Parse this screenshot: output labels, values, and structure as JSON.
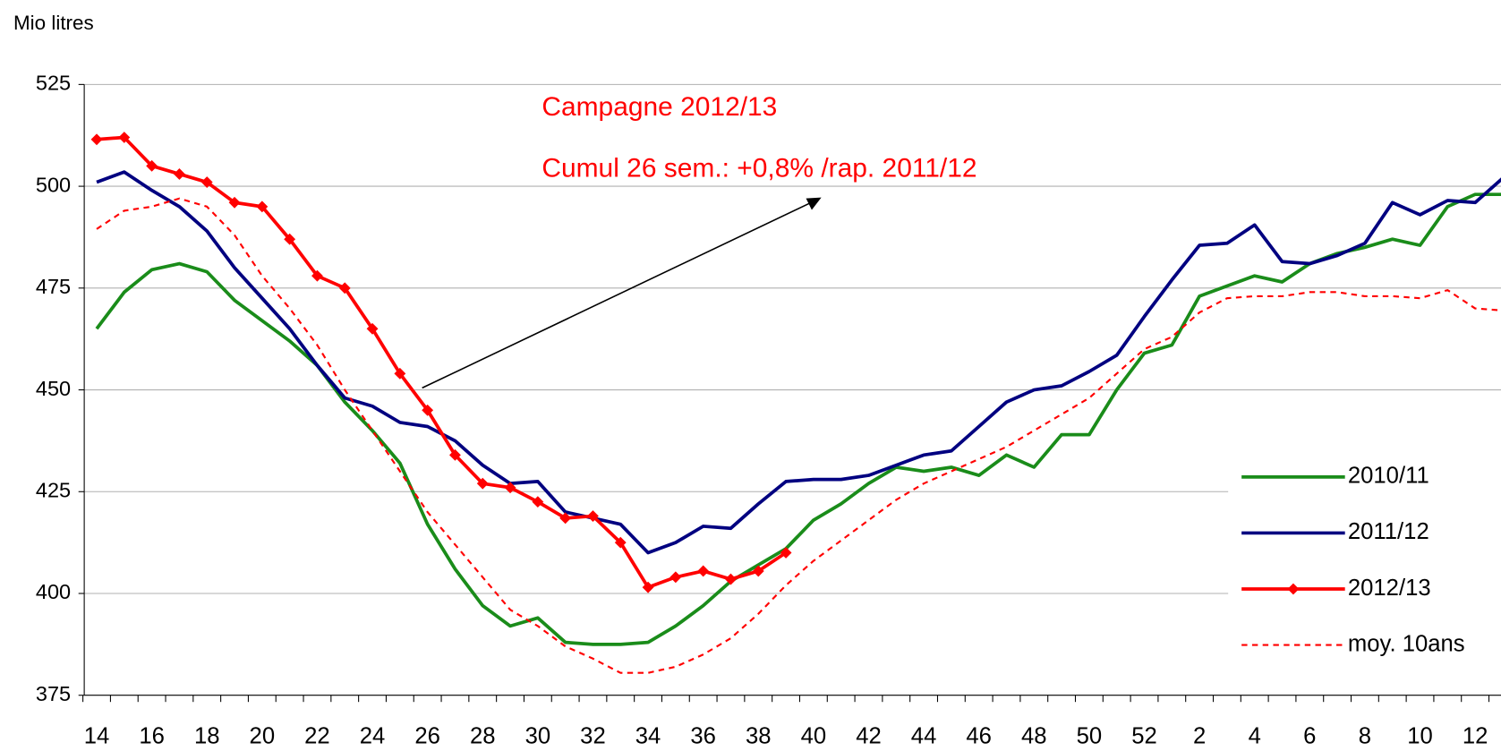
{
  "chart_data": {
    "type": "line",
    "y_label": "Mio litres",
    "annotations": [
      "Campagne 2012/13",
      "Cumul 26 sem.: +0,8% /rap. 2011/12"
    ],
    "categories": [
      14,
      null,
      16,
      null,
      18,
      null,
      20,
      null,
      22,
      null,
      24,
      null,
      26,
      null,
      28,
      null,
      30,
      null,
      32,
      null,
      34,
      null,
      36,
      null,
      38,
      null,
      40,
      null,
      42,
      null,
      44,
      null,
      46,
      null,
      48,
      null,
      50,
      null,
      52,
      null,
      2,
      null,
      4,
      null,
      6,
      null,
      8,
      null,
      10,
      null,
      12,
      null
    ],
    "ylim": [
      375,
      525
    ],
    "yticks": [
      375,
      400,
      425,
      450,
      475,
      500,
      525
    ],
    "grid": true,
    "legend": "right",
    "series": [
      {
        "name": "2010/11",
        "color": "#1a8c1a",
        "values": [
          465,
          474,
          479.5,
          481,
          479,
          472,
          467,
          462,
          456,
          447,
          440,
          432,
          417,
          406,
          397,
          392,
          394,
          388,
          387.5,
          387.5,
          388,
          392,
          397,
          403,
          407,
          411,
          418,
          422,
          427,
          431,
          430,
          431,
          429,
          434,
          431,
          439,
          439,
          450,
          459,
          461,
          473,
          475.5,
          478,
          476.5,
          481,
          483.5,
          485,
          487,
          485.5,
          495,
          498,
          498
        ]
      },
      {
        "name": "2011/12",
        "color": "#000080",
        "values": [
          501,
          503.5,
          499,
          495,
          489,
          480,
          472.5,
          465,
          456,
          448,
          446,
          442,
          441,
          437.5,
          431.5,
          427,
          427.5,
          420,
          418.5,
          417,
          410,
          412.5,
          416.5,
          416,
          422,
          427.5,
          428,
          428,
          429,
          431.5,
          434,
          435,
          441,
          447,
          450,
          451,
          454.5,
          458.5,
          468,
          477,
          485.5,
          486,
          490.5,
          481.5,
          481,
          483,
          486,
          496,
          493,
          496.5,
          496,
          502
        ]
      },
      {
        "name": "2012/13",
        "color": "#ff0000",
        "marker": "diamond",
        "values": [
          511.5,
          512,
          505,
          503,
          501,
          496,
          495,
          487,
          478,
          475,
          465,
          454,
          445,
          434,
          427,
          426,
          422.5,
          418.5,
          419,
          412.5,
          401.5,
          404,
          405.5,
          403.5,
          405.5,
          410,
          null,
          null,
          null,
          null,
          null,
          null,
          null,
          null,
          null,
          null,
          null,
          null,
          null,
          null,
          null,
          null,
          null,
          null,
          null,
          null,
          null,
          null,
          null,
          null,
          null,
          null
        ]
      },
      {
        "name": "moy. 10ans",
        "color": "#ff0000",
        "dash": true,
        "values": [
          489.5,
          494,
          495,
          497,
          495,
          488,
          478,
          470,
          461,
          450,
          440,
          430,
          420,
          412,
          404,
          396,
          392,
          387,
          384,
          380.5,
          380.5,
          382,
          385,
          389,
          395,
          402,
          408,
          413,
          418,
          423,
          427,
          430,
          433,
          436,
          440,
          444,
          448,
          454,
          460,
          463,
          469,
          472.5,
          473,
          473,
          474,
          474,
          473,
          473,
          472.5,
          474.5,
          470,
          469.5
        ]
      }
    ]
  }
}
